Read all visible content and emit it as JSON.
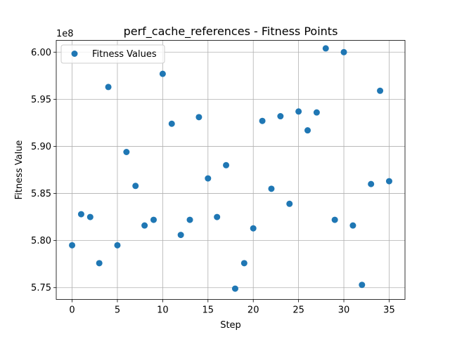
{
  "chart_data": {
    "type": "scatter",
    "title": "perf_cache_references - Fitness Points",
    "xlabel": "Step",
    "ylabel": "Fitness Value",
    "offset_label": "1e8",
    "xlim": [
      -1.75,
      36.75
    ],
    "ylim": [
      5.7375,
      6.0125
    ],
    "x_ticks": [
      0,
      5,
      10,
      15,
      20,
      25,
      30,
      35
    ],
    "x_tick_labels": [
      "0",
      "5",
      "10",
      "15",
      "20",
      "25",
      "30",
      "35"
    ],
    "y_ticks": [
      5.75,
      5.8,
      5.85,
      5.9,
      5.95,
      6.0
    ],
    "y_tick_labels": [
      "5.75",
      "5.80",
      "5.85",
      "5.90",
      "5.95",
      "6.00"
    ],
    "y_scale_note": "values in units of 1e8",
    "grid": true,
    "legend": {
      "position": "top-left",
      "entries": [
        "Fitness Values"
      ]
    },
    "series": [
      {
        "name": "Fitness Values",
        "color": "#1f77b4",
        "points": [
          [
            0,
            5.795
          ],
          [
            1,
            5.828
          ],
          [
            2,
            5.825
          ],
          [
            3,
            5.776
          ],
          [
            4,
            5.963
          ],
          [
            5,
            5.795
          ],
          [
            6,
            5.894
          ],
          [
            7,
            5.858
          ],
          [
            8,
            5.816
          ],
          [
            9,
            5.822
          ],
          [
            10,
            5.977
          ],
          [
            11,
            5.924
          ],
          [
            12,
            5.806
          ],
          [
            13,
            5.822
          ],
          [
            14,
            5.931
          ],
          [
            15,
            5.866
          ],
          [
            16,
            5.825
          ],
          [
            17,
            5.88
          ],
          [
            18,
            5.749
          ],
          [
            19,
            5.776
          ],
          [
            20,
            5.813
          ],
          [
            21,
            5.927
          ],
          [
            22,
            5.855
          ],
          [
            23,
            5.932
          ],
          [
            24,
            5.839
          ],
          [
            25,
            5.937
          ],
          [
            26,
            5.917
          ],
          [
            27,
            5.936
          ],
          [
            28,
            6.004
          ],
          [
            29,
            5.822
          ],
          [
            30,
            6.0
          ],
          [
            31,
            5.816
          ],
          [
            32,
            5.753
          ],
          [
            33,
            5.86
          ],
          [
            34,
            5.959
          ],
          [
            35,
            5.863
          ]
        ]
      }
    ]
  }
}
